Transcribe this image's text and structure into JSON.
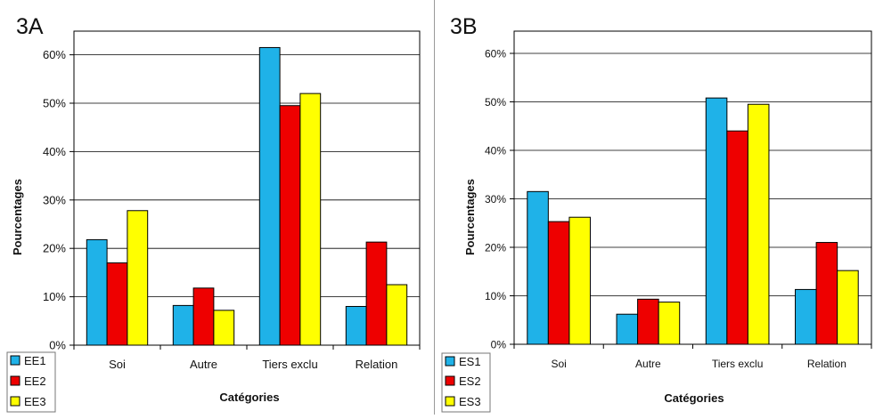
{
  "chart_data": [
    {
      "type": "bar",
      "panel_label": "3A",
      "categories": [
        "Soi",
        "Autre",
        "Tiers exclu",
        "Relation"
      ],
      "series": [
        {
          "name": "EE1",
          "color": "#1fb2e8",
          "values": [
            21.8,
            8.2,
            61.5,
            8.0
          ]
        },
        {
          "name": "EE2",
          "color": "#ee0000",
          "values": [
            17.0,
            11.8,
            49.5,
            21.3
          ]
        },
        {
          "name": "EE3",
          "color": "#ffff00",
          "values": [
            27.8,
            7.2,
            52.0,
            12.5
          ]
        }
      ],
      "yticks": [
        "0%",
        "10%",
        "20%",
        "30%",
        "40%",
        "50%",
        "60%"
      ],
      "ylim": [
        0,
        70
      ],
      "xlabel": "Catégories",
      "ylabel": "Pourcentages",
      "grid": true,
      "legend_position": "bottom-left"
    },
    {
      "type": "bar",
      "panel_label": "3B",
      "categories": [
        "Soi",
        "Autre",
        "Tiers exclu",
        "Relation"
      ],
      "series": [
        {
          "name": "ES1",
          "color": "#1fb2e8",
          "values": [
            31.5,
            6.2,
            50.8,
            11.3
          ]
        },
        {
          "name": "ES2",
          "color": "#ee0000",
          "values": [
            25.3,
            9.3,
            44.0,
            21.0
          ]
        },
        {
          "name": "ES3",
          "color": "#ffff00",
          "values": [
            26.2,
            8.7,
            49.5,
            15.2
          ]
        }
      ],
      "yticks": [
        "0%",
        "10%",
        "20%",
        "30%",
        "40%",
        "50%",
        "60%"
      ],
      "ylim": [
        0,
        70
      ],
      "xlabel": "Catégories",
      "ylabel": "Pourcentages",
      "grid": true,
      "legend_position": "bottom-left"
    }
  ]
}
